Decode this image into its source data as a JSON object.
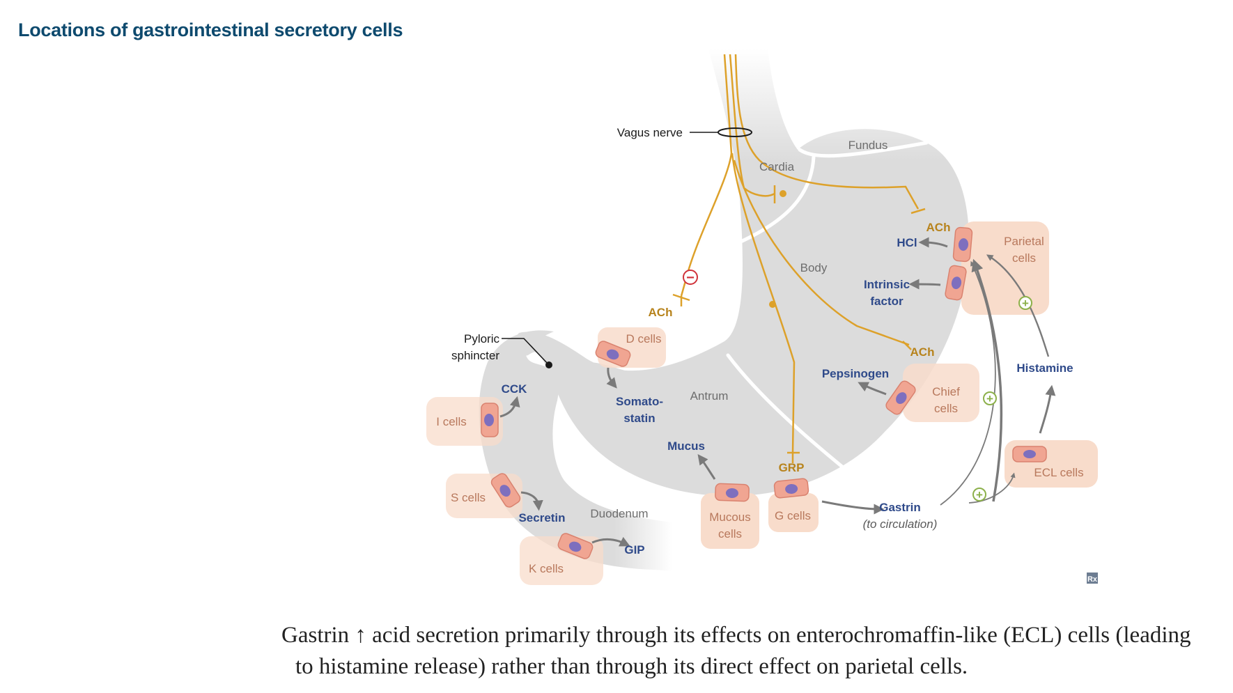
{
  "title": "Locations of gastrointestinal secretory cells",
  "regions": {
    "fundus": "Fundus",
    "cardia": "Cardia",
    "body": "Body",
    "antrum": "Antrum",
    "duodenum": "Duodenum"
  },
  "annotations": {
    "vagus_nerve": "Vagus nerve",
    "pyloric_1": "Pyloric",
    "pyloric_2": "sphincter"
  },
  "cells": {
    "parietal_1": "Parietal",
    "parietal_2": "cells",
    "chief_1": "Chief",
    "chief_2": "cells",
    "d_cells": "D cells",
    "i_cells": "I cells",
    "s_cells": "S cells",
    "k_cells": "K cells",
    "mucous_1": "Mucous",
    "mucous_2": "cells",
    "g_cells": "G cells",
    "ecl_cells": "ECL cells"
  },
  "secretions": {
    "hcl": "HCl",
    "intrinsic_1": "Intrinsic",
    "intrinsic_2": "factor",
    "pepsinogen": "Pepsinogen",
    "somato_1": "Somato-",
    "somato_2": "statin",
    "cck": "CCK",
    "secretin": "Secretin",
    "gip": "GIP",
    "mucus": "Mucus",
    "gastrin": "Gastrin",
    "gastrin_sub": "(to circulation)",
    "histamine": "Histamine"
  },
  "neurotransmitters": {
    "ach_left": "ACh",
    "ach_parietal": "ACh",
    "ach_chief": "ACh",
    "grp": "GRP"
  },
  "signs": {
    "minus": "−",
    "plus": "+"
  },
  "logo": "Rx",
  "caption": {
    "line1": "Gastrin ↑ acid secretion primarily through its effects on enterochromaffin-like (ECL) cells (leading",
    "line2": "to histamine release) rather than through its direct effect on parietal cells."
  },
  "colors": {
    "title": "#0e4a6e",
    "organ": "#dcdcdc",
    "nerve": "#dda12a",
    "cell_bg": "#f8dccb",
    "cell_fill": "#f0a592",
    "nucleus": "#7e6fbe",
    "hormone": "#2f4a8a",
    "plus": "#8cb04a",
    "minus": "#d0323a"
  }
}
